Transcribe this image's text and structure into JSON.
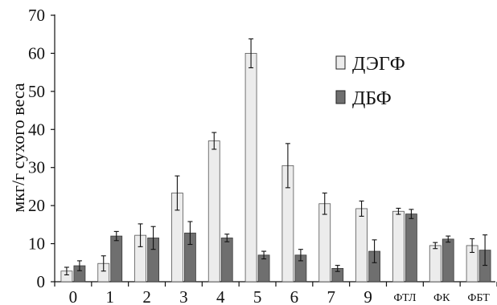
{
  "chart_data": {
    "type": "bar",
    "categories": [
      "0",
      "1",
      "2",
      "3",
      "4",
      "5",
      "6",
      "7",
      "9",
      "ФТЛ",
      "ФК",
      "ФБТ"
    ],
    "series": [
      {
        "name": "ДЭГФ",
        "values": [
          2.8,
          4.8,
          12.2,
          23.3,
          37.0,
          60.0,
          30.5,
          20.5,
          19.2,
          18.5,
          9.5,
          9.5
        ],
        "errors": [
          1.0,
          2.0,
          3.0,
          4.5,
          2.2,
          3.8,
          5.8,
          2.8,
          2.0,
          0.8,
          0.8,
          1.8
        ],
        "color": "#ececec"
      },
      {
        "name": "ДБФ",
        "values": [
          4.2,
          12.0,
          11.5,
          12.8,
          11.5,
          7.0,
          7.0,
          3.5,
          8.0,
          17.8,
          11.2,
          8.3
        ],
        "errors": [
          1.3,
          1.2,
          3.0,
          3.0,
          1.0,
          1.0,
          1.5,
          0.8,
          3.0,
          1.2,
          0.8,
          4.0
        ],
        "color": "#6f6f6f"
      }
    ],
    "title": "",
    "xlabel": "",
    "ylabel": "мкг/г сухого веса",
    "ylim": [
      0,
      70
    ],
    "yticks": [
      "0",
      "10",
      "20",
      "30",
      "40",
      "50",
      "60",
      "70"
    ],
    "grid": false,
    "legend_position": "top-right"
  }
}
